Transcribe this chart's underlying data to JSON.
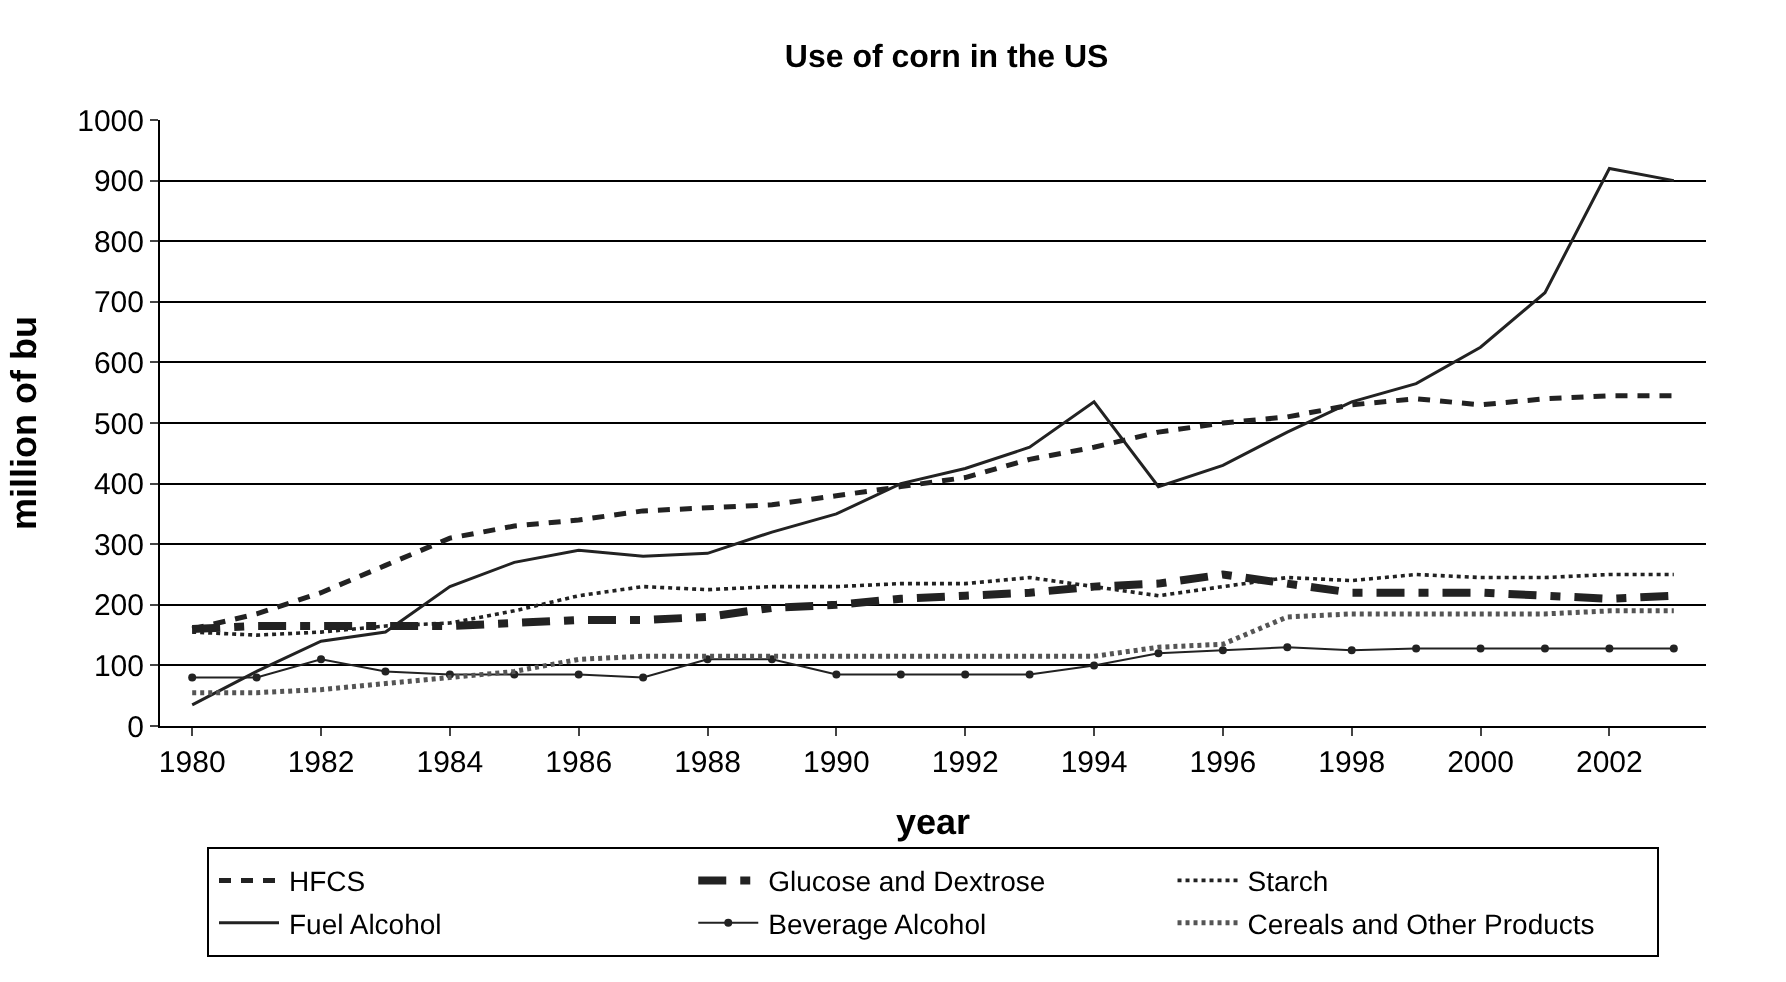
{
  "chart_data": {
    "type": "line",
    "title": "Use of corn in the US",
    "xlabel": "year",
    "ylabel": "million of bu",
    "x": [
      1980,
      1981,
      1982,
      1983,
      1984,
      1985,
      1986,
      1987,
      1988,
      1989,
      1990,
      1991,
      1992,
      1993,
      1994,
      1995,
      1996,
      1997,
      1998,
      1999,
      2000,
      2001,
      2002,
      2003
    ],
    "xlim": [
      1979.5,
      2003.5
    ],
    "xticks": [
      1980,
      1982,
      1984,
      1986,
      1988,
      1990,
      1992,
      1994,
      1996,
      1998,
      2000,
      2002
    ],
    "ylim": [
      0,
      1000
    ],
    "yticks": [
      0,
      100,
      200,
      300,
      400,
      500,
      600,
      700,
      800,
      900,
      1000
    ],
    "grid": "y",
    "legend": "bottom",
    "marker": "none",
    "series": [
      {
        "name": "HFCS",
        "color": "#222222",
        "line_style": "dashed",
        "values": [
          160,
          185,
          220,
          265,
          310,
          330,
          340,
          355,
          360,
          365,
          380,
          395,
          410,
          440,
          460,
          485,
          500,
          510,
          530,
          540,
          530,
          540,
          545,
          545
        ]
      },
      {
        "name": "Glucose and Dextrose",
        "color": "#222222",
        "line_style": "dashdot",
        "values": [
          160,
          165,
          165,
          165,
          165,
          170,
          175,
          175,
          180,
          195,
          200,
          210,
          215,
          220,
          230,
          235,
          250,
          235,
          220,
          220,
          220,
          215,
          210,
          215
        ]
      },
      {
        "name": "Starch",
        "color": "#222222",
        "line_style": "dotted",
        "values": [
          155,
          150,
          155,
          165,
          170,
          190,
          215,
          230,
          225,
          230,
          230,
          235,
          235,
          245,
          230,
          215,
          230,
          245,
          240,
          250,
          245,
          245,
          250,
          250
        ]
      },
      {
        "name": "Fuel Alcohol",
        "color": "#222222",
        "line_style": "solid",
        "values": [
          35,
          90,
          140,
          155,
          230,
          270,
          290,
          280,
          285,
          320,
          350,
          400,
          425,
          460,
          535,
          395,
          430,
          485,
          535,
          565,
          625,
          715,
          920,
          900
        ]
      },
      {
        "name": "Beverage Alcohol",
        "color": "#222222",
        "line_style": "solid",
        "marker": "circle",
        "values": [
          80,
          80,
          110,
          90,
          85,
          85,
          85,
          80,
          110,
          110,
          85,
          85,
          85,
          85,
          100,
          120,
          125,
          130,
          125,
          128,
          128,
          128,
          128,
          128
        ]
      },
      {
        "name": "Cereals and Other Products",
        "color": "#555555",
        "line_style": "dotted",
        "values": [
          55,
          55,
          60,
          70,
          80,
          90,
          110,
          115,
          115,
          115,
          115,
          115,
          115,
          115,
          115,
          130,
          135,
          180,
          185,
          185,
          185,
          185,
          190,
          190
        ]
      }
    ]
  }
}
